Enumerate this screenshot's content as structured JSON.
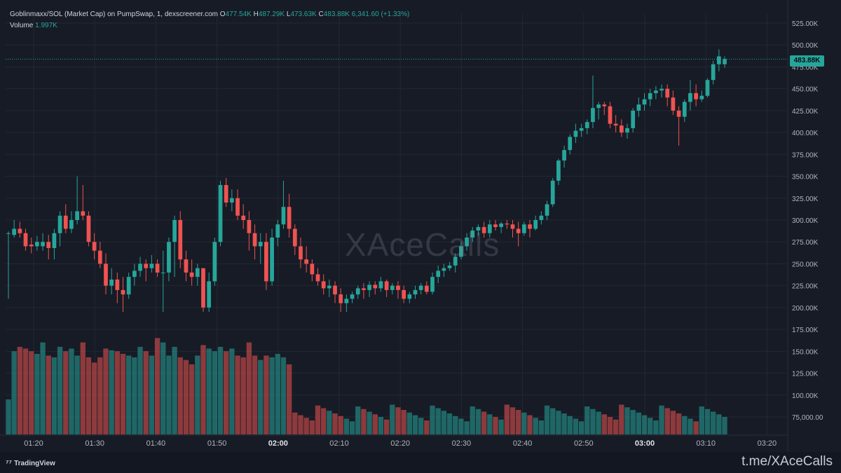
{
  "legend": {
    "title": "Goblinmaxx/SOL (Market Cap) on PumpSwap, 1, dexscreener.com",
    "o_label": "O",
    "o_value": "477.54K",
    "h_label": "H",
    "h_value": "487.29K",
    "l_label": "L",
    "l_value": "473.63K",
    "c_label": "C",
    "c_value": "483.88K",
    "change": "6,341.60 (+1.33%)",
    "volume_label": "Volume",
    "volume_value": "1.997K"
  },
  "price_badge": "483.88K",
  "watermark": "XAceCalls",
  "footer": {
    "brand": "TradingView",
    "channel": "t.me/XAceCalls"
  },
  "colors": {
    "up": "#26a69a",
    "down": "#ef5350",
    "background": "#171b26",
    "grid": "#232733"
  },
  "chart_data": {
    "type": "candlestick",
    "y_ticks": [
      "525.00K",
      "500.00K",
      "475.00K",
      "450.00K",
      "425.00K",
      "400.00K",
      "375.00K",
      "350.00K",
      "325.00K",
      "300.00K",
      "275.00K",
      "250.00K",
      "225.00K",
      "200.00K",
      "175.00K",
      "150.00K",
      "125.00K",
      "100.00K",
      "75,000.00"
    ],
    "x_ticks": [
      "01:20",
      "01:30",
      "01:40",
      "01:50",
      "02:00",
      "02:10",
      "02:20",
      "02:30",
      "02:40",
      "02:50",
      "03:00",
      "03:10",
      "03:20"
    ],
    "bold_x_ticks": [
      "02:00",
      "03:00"
    ],
    "last_price": 483880,
    "candles": [
      [
        285,
        287,
        210,
        285
      ],
      [
        283,
        300,
        280,
        290
      ],
      [
        290,
        298,
        280,
        285
      ],
      [
        285,
        290,
        265,
        270
      ],
      [
        272,
        280,
        262,
        270
      ],
      [
        270,
        282,
        265,
        275
      ],
      [
        270,
        285,
        265,
        275
      ],
      [
        275,
        283,
        255,
        268
      ],
      [
        268,
        290,
        255,
        285
      ],
      [
        285,
        310,
        270,
        305
      ],
      [
        305,
        318,
        285,
        290
      ],
      [
        290,
        310,
        285,
        300
      ],
      [
        300,
        350,
        295,
        310
      ],
      [
        310,
        340,
        300,
        305
      ],
      [
        305,
        310,
        270,
        275
      ],
      [
        275,
        285,
        255,
        265
      ],
      [
        265,
        275,
        245,
        250
      ],
      [
        250,
        262,
        215,
        225
      ],
      [
        225,
        245,
        215,
        232
      ],
      [
        232,
        240,
        205,
        220
      ],
      [
        220,
        235,
        195,
        215
      ],
      [
        215,
        240,
        210,
        235
      ],
      [
        235,
        250,
        225,
        242
      ],
      [
        242,
        258,
        235,
        250
      ],
      [
        250,
        255,
        230,
        245
      ],
      [
        245,
        260,
        240,
        250
      ],
      [
        250,
        255,
        235,
        240
      ],
      [
        240,
        265,
        195,
        240
      ],
      [
        240,
        280,
        230,
        275
      ],
      [
        275,
        305,
        235,
        300
      ],
      [
        300,
        310,
        245,
        255
      ],
      [
        255,
        265,
        230,
        240
      ],
      [
        240,
        255,
        225,
        235
      ],
      [
        235,
        250,
        225,
        245
      ],
      [
        245,
        245,
        195,
        200
      ],
      [
        200,
        240,
        195,
        230
      ],
      [
        230,
        280,
        225,
        275
      ],
      [
        275,
        345,
        270,
        340
      ],
      [
        340,
        348,
        315,
        320
      ],
      [
        320,
        335,
        310,
        325
      ],
      [
        325,
        335,
        300,
        305
      ],
      [
        305,
        318,
        290,
        300
      ],
      [
        300,
        310,
        265,
        285
      ],
      [
        285,
        295,
        255,
        270
      ],
      [
        270,
        285,
        250,
        275
      ],
      [
        275,
        285,
        220,
        230
      ],
      [
        230,
        290,
        225,
        280
      ],
      [
        280,
        300,
        270,
        295
      ],
      [
        295,
        345,
        290,
        315
      ],
      [
        315,
        330,
        280,
        290
      ],
      [
        290,
        295,
        260,
        270
      ],
      [
        270,
        280,
        245,
        255
      ],
      [
        255,
        270,
        240,
        250
      ],
      [
        250,
        255,
        230,
        238
      ],
      [
        238,
        245,
        225,
        230
      ],
      [
        230,
        238,
        215,
        222
      ],
      [
        222,
        232,
        212,
        225
      ],
      [
        225,
        230,
        205,
        215
      ],
      [
        215,
        222,
        195,
        205
      ],
      [
        205,
        215,
        195,
        210
      ],
      [
        210,
        218,
        205,
        215
      ],
      [
        215,
        225,
        210,
        222
      ],
      [
        222,
        228,
        210,
        220
      ],
      [
        220,
        230,
        212,
        226
      ],
      [
        226,
        230,
        215,
        222
      ],
      [
        222,
        235,
        218,
        230
      ],
      [
        230,
        232,
        212,
        220
      ],
      [
        220,
        228,
        215,
        225
      ],
      [
        225,
        230,
        210,
        220
      ],
      [
        220,
        225,
        205,
        210
      ],
      [
        210,
        218,
        205,
        215
      ],
      [
        215,
        225,
        210,
        220
      ],
      [
        220,
        228,
        215,
        225
      ],
      [
        225,
        230,
        215,
        218
      ],
      [
        218,
        240,
        215,
        235
      ],
      [
        235,
        248,
        228,
        242
      ],
      [
        242,
        250,
        235,
        245
      ],
      [
        245,
        252,
        242,
        248
      ],
      [
        248,
        262,
        240,
        258
      ],
      [
        258,
        275,
        255,
        270
      ],
      [
        270,
        285,
        265,
        280
      ],
      [
        280,
        292,
        275,
        288
      ],
      [
        288,
        295,
        282,
        292
      ],
      [
        292,
        298,
        280,
        285
      ],
      [
        285,
        300,
        280,
        295
      ],
      [
        295,
        300,
        288,
        292
      ],
      [
        292,
        298,
        285,
        296
      ],
      [
        296,
        300,
        290,
        295
      ],
      [
        295,
        300,
        280,
        290
      ],
      [
        290,
        298,
        270,
        285
      ],
      [
        285,
        298,
        282,
        295
      ],
      [
        295,
        300,
        280,
        290
      ],
      [
        290,
        305,
        288,
        300
      ],
      [
        300,
        310,
        295,
        305
      ],
      [
        305,
        322,
        300,
        318
      ],
      [
        318,
        348,
        315,
        345
      ],
      [
        345,
        370,
        340,
        368
      ],
      [
        368,
        385,
        360,
        380
      ],
      [
        380,
        398,
        375,
        395
      ],
      [
        395,
        410,
        388,
        402
      ],
      [
        402,
        410,
        395,
        405
      ],
      [
        405,
        415,
        398,
        412
      ],
      [
        412,
        465,
        405,
        428
      ],
      [
        428,
        435,
        415,
        432
      ],
      [
        432,
        435,
        420,
        430
      ],
      [
        430,
        435,
        405,
        410
      ],
      [
        410,
        420,
        400,
        408
      ],
      [
        408,
        415,
        395,
        400
      ],
      [
        400,
        410,
        393,
        405
      ],
      [
        405,
        428,
        400,
        425
      ],
      [
        425,
        440,
        418,
        432
      ],
      [
        432,
        445,
        425,
        438
      ],
      [
        438,
        450,
        430,
        445
      ],
      [
        445,
        453,
        438,
        448
      ],
      [
        448,
        455,
        440,
        450
      ],
      [
        450,
        455,
        430,
        440
      ],
      [
        440,
        448,
        420,
        425
      ],
      [
        425,
        430,
        385,
        418
      ],
      [
        418,
        438,
        412,
        435
      ],
      [
        435,
        460,
        425,
        445
      ],
      [
        445,
        455,
        430,
        438
      ],
      [
        438,
        448,
        435,
        442
      ],
      [
        442,
        462,
        440,
        460
      ],
      [
        460,
        482,
        455,
        478
      ],
      [
        478,
        495,
        470,
        487
      ],
      [
        478,
        487,
        474,
        484
      ]
    ],
    "volumes": [
      [
        100,
        150
      ],
      [
        155,
        150
      ],
      [
        160,
        150
      ],
      [
        158,
        150
      ],
      [
        155,
        150
      ],
      [
        152,
        150
      ],
      [
        165,
        150
      ],
      [
        150,
        150
      ],
      [
        148,
        150
      ],
      [
        160,
        150
      ],
      [
        155,
        150
      ],
      [
        158,
        150
      ],
      [
        150,
        150
      ],
      [
        165,
        150
      ],
      [
        148,
        150
      ],
      [
        142,
        150
      ],
      [
        148,
        150
      ],
      [
        158,
        150
      ],
      [
        156,
        150
      ],
      [
        155,
        150
      ],
      [
        152,
        150
      ],
      [
        150,
        150
      ],
      [
        148,
        150
      ],
      [
        160,
        150
      ],
      [
        155,
        150
      ],
      [
        150,
        150
      ],
      [
        170,
        150
      ],
      [
        165,
        150
      ],
      [
        150,
        150
      ],
      [
        160,
        150
      ],
      [
        148,
        150
      ],
      [
        145,
        150
      ],
      [
        140,
        150
      ],
      [
        150,
        150
      ],
      [
        162,
        150
      ],
      [
        158,
        150
      ],
      [
        155,
        150
      ],
      [
        160,
        150
      ],
      [
        155,
        150
      ],
      [
        158,
        150
      ],
      [
        150,
        150
      ],
      [
        148,
        150
      ],
      [
        165,
        150
      ],
      [
        150,
        150
      ],
      [
        145,
        150
      ],
      [
        150,
        150
      ],
      [
        148,
        150
      ],
      [
        152,
        150
      ],
      [
        148,
        150
      ],
      [
        140,
        150
      ]
    ]
  }
}
